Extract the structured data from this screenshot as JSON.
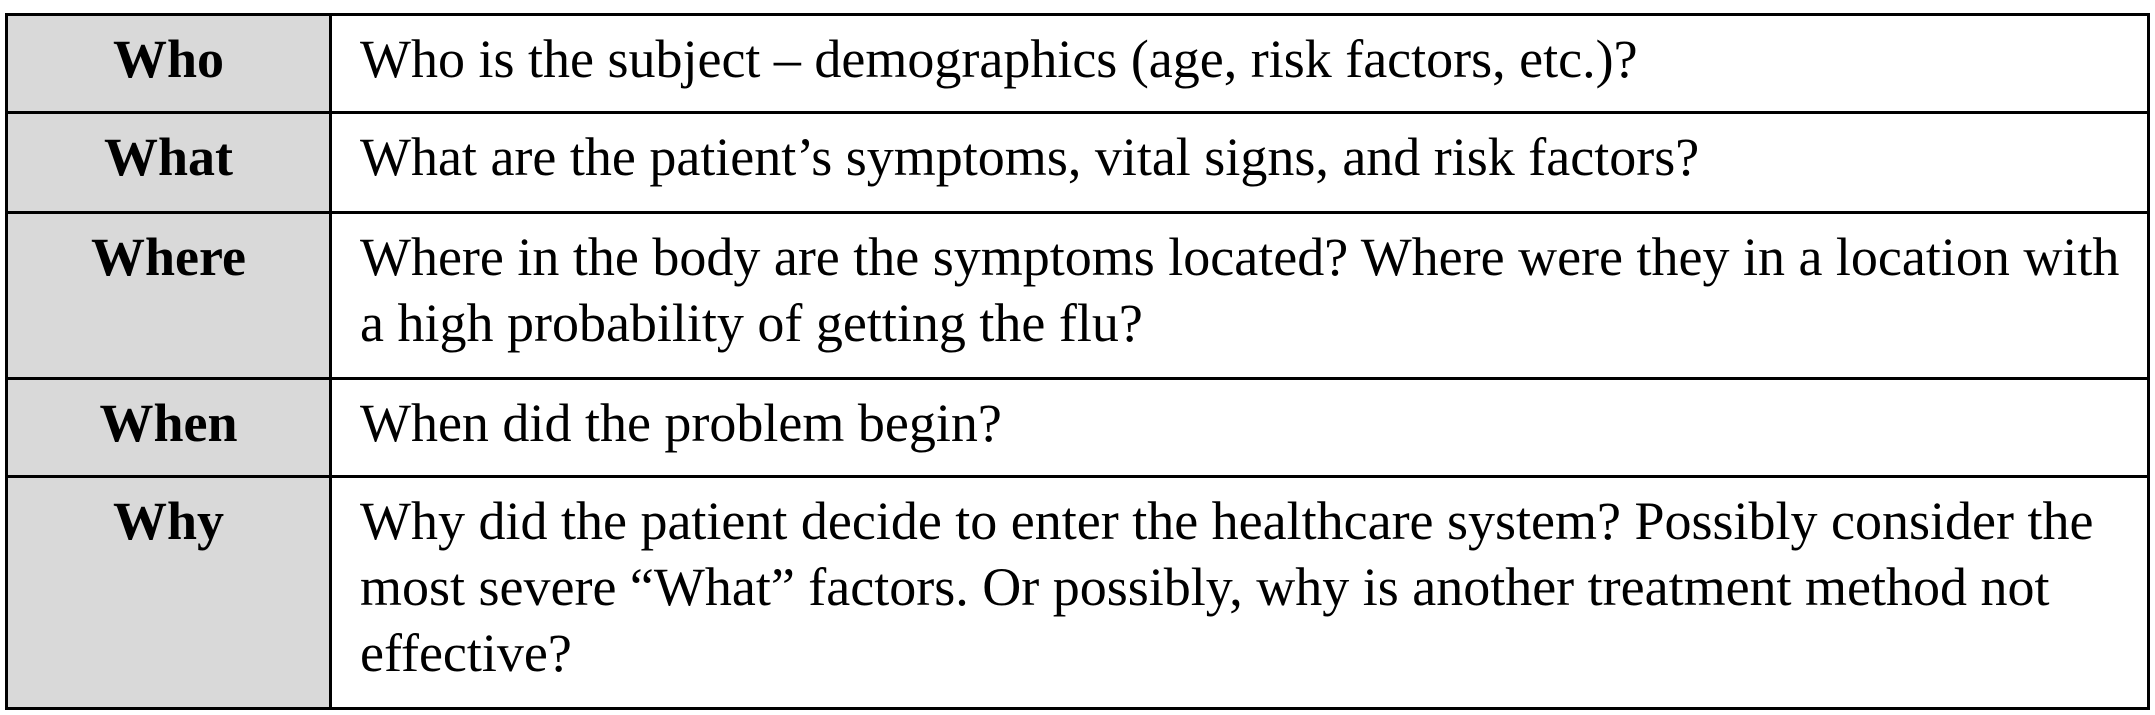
{
  "table": {
    "rows": [
      {
        "term": "Who",
        "question": "Who is the subject – demographics (age, risk factors, etc.)?"
      },
      {
        "term": "What",
        "question": "What are the patient’s symptoms, vital signs, and risk factors?"
      },
      {
        "term": "Where",
        "question": "Where in the body are the symptoms located?  Where were they in a location with a high probability of getting the flu?"
      },
      {
        "term": "When",
        "question": "When did the problem begin?"
      },
      {
        "term": "Why",
        "question": "Why did the patient decide to enter the healthcare system?  Possibly consider the most severe “What” factors.  Or possibly, why is another treatment method not effective?"
      }
    ]
  }
}
